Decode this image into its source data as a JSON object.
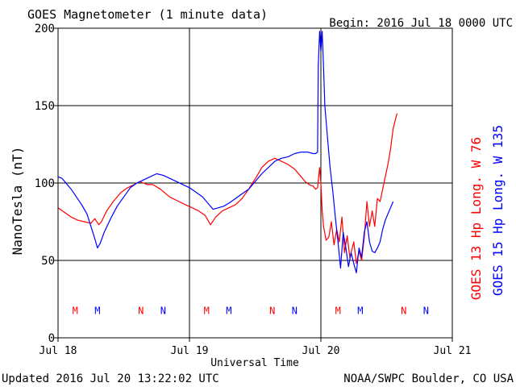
{
  "header": {
    "title": "GOES Magnetometer (1 minute data)",
    "begin": "Begin:  2016 Jul 18 0000 UTC"
  },
  "footer": {
    "updated": "Updated 2016 Jul 20 13:22:02 UTC",
    "source": "NOAA/SWPC Boulder, CO USA"
  },
  "colors": {
    "goes13": "#ff0000",
    "goes15": "#0000ff",
    "axis": "#000000",
    "background": "#ffffff"
  },
  "chart_data": {
    "type": "line",
    "title": "GOES Magnetometer (1 minute data)",
    "xlabel": "Universal Time",
    "ylabel": "NanoTesla (nT)",
    "x_unit": "days since 2016 Jul 18 0000 UTC",
    "xlim": [
      0,
      3
    ],
    "ylim": [
      0,
      200
    ],
    "x_ticks": [
      {
        "x": 0,
        "label": "Jul 18"
      },
      {
        "x": 1,
        "label": "Jul 19"
      },
      {
        "x": 2,
        "label": "Jul 20"
      },
      {
        "x": 3,
        "label": "Jul 21"
      }
    ],
    "y_ticks": [
      0,
      50,
      100,
      150,
      200
    ],
    "grid": "major lines at y=50,100,150 and at each day boundary",
    "series": [
      {
        "name": "GOES 13 Hp  Long. W 76",
        "color": "#ff0000",
        "points": [
          [
            0.0,
            84
          ],
          [
            0.05,
            81
          ],
          [
            0.1,
            78
          ],
          [
            0.15,
            76
          ],
          [
            0.2,
            75
          ],
          [
            0.25,
            74
          ],
          [
            0.28,
            77
          ],
          [
            0.31,
            73
          ],
          [
            0.33,
            75
          ],
          [
            0.37,
            82
          ],
          [
            0.42,
            88
          ],
          [
            0.48,
            94
          ],
          [
            0.53,
            97
          ],
          [
            0.58,
            99
          ],
          [
            0.62,
            101
          ],
          [
            0.65,
            100
          ],
          [
            0.68,
            99
          ],
          [
            0.72,
            99
          ],
          [
            0.78,
            96
          ],
          [
            0.85,
            91
          ],
          [
            0.92,
            88
          ],
          [
            0.97,
            86
          ],
          [
            1.02,
            84
          ],
          [
            1.07,
            82
          ],
          [
            1.12,
            79
          ],
          [
            1.16,
            73
          ],
          [
            1.2,
            78
          ],
          [
            1.25,
            82
          ],
          [
            1.3,
            84
          ],
          [
            1.35,
            86
          ],
          [
            1.4,
            90
          ],
          [
            1.45,
            96
          ],
          [
            1.48,
            100
          ],
          [
            1.51,
            104
          ],
          [
            1.55,
            110
          ],
          [
            1.6,
            114
          ],
          [
            1.65,
            116
          ],
          [
            1.7,
            114
          ],
          [
            1.75,
            112
          ],
          [
            1.8,
            109
          ],
          [
            1.85,
            104
          ],
          [
            1.88,
            101
          ],
          [
            1.91,
            99
          ],
          [
            1.94,
            98
          ],
          [
            1.96,
            96
          ],
          [
            1.975,
            97
          ],
          [
            1.99,
            110
          ],
          [
            2.0,
            100
          ],
          [
            2.01,
            82
          ],
          [
            2.02,
            72
          ],
          [
            2.04,
            63
          ],
          [
            2.06,
            65
          ],
          [
            2.08,
            75
          ],
          [
            2.1,
            60
          ],
          [
            2.12,
            70
          ],
          [
            2.14,
            62
          ],
          [
            2.16,
            78
          ],
          [
            2.18,
            55
          ],
          [
            2.2,
            66
          ],
          [
            2.22,
            52
          ],
          [
            2.25,
            62
          ],
          [
            2.27,
            48
          ],
          [
            2.29,
            56
          ],
          [
            2.31,
            50
          ],
          [
            2.33,
            65
          ],
          [
            2.35,
            88
          ],
          [
            2.37,
            72
          ],
          [
            2.39,
            82
          ],
          [
            2.41,
            72
          ],
          [
            2.43,
            90
          ],
          [
            2.45,
            88
          ],
          [
            2.47,
            96
          ],
          [
            2.49,
            104
          ],
          [
            2.51,
            112
          ],
          [
            2.53,
            122
          ],
          [
            2.55,
            135
          ],
          [
            2.57,
            142
          ],
          [
            2.58,
            145
          ]
        ]
      },
      {
        "name": "GOES 15 Hp  Long. W 135",
        "color": "#0000ff",
        "points": [
          [
            0.0,
            104
          ],
          [
            0.03,
            103
          ],
          [
            0.06,
            100
          ],
          [
            0.1,
            96
          ],
          [
            0.14,
            91
          ],
          [
            0.18,
            86
          ],
          [
            0.22,
            80
          ],
          [
            0.25,
            72
          ],
          [
            0.28,
            64
          ],
          [
            0.3,
            58
          ],
          [
            0.32,
            61
          ],
          [
            0.35,
            68
          ],
          [
            0.4,
            77
          ],
          [
            0.45,
            85
          ],
          [
            0.5,
            91
          ],
          [
            0.55,
            97
          ],
          [
            0.6,
            100
          ],
          [
            0.65,
            102
          ],
          [
            0.7,
            104
          ],
          [
            0.75,
            106
          ],
          [
            0.8,
            105
          ],
          [
            0.85,
            103
          ],
          [
            0.9,
            101
          ],
          [
            0.95,
            99
          ],
          [
            1.0,
            97
          ],
          [
            1.05,
            94
          ],
          [
            1.1,
            91
          ],
          [
            1.15,
            86
          ],
          [
            1.18,
            83
          ],
          [
            1.22,
            84
          ],
          [
            1.26,
            85
          ],
          [
            1.3,
            87
          ],
          [
            1.35,
            90
          ],
          [
            1.4,
            93
          ],
          [
            1.45,
            96
          ],
          [
            1.5,
            101
          ],
          [
            1.55,
            106
          ],
          [
            1.6,
            110
          ],
          [
            1.65,
            114
          ],
          [
            1.7,
            116
          ],
          [
            1.75,
            117
          ],
          [
            1.8,
            119
          ],
          [
            1.85,
            120
          ],
          [
            1.9,
            120
          ],
          [
            1.94,
            119
          ],
          [
            1.96,
            119
          ],
          [
            1.975,
            120
          ],
          [
            1.98,
            175
          ],
          [
            1.99,
            198
          ],
          [
            2.0,
            185
          ],
          [
            2.01,
            198
          ],
          [
            2.02,
            175
          ],
          [
            2.03,
            150
          ],
          [
            2.05,
            130
          ],
          [
            2.07,
            110
          ],
          [
            2.09,
            95
          ],
          [
            2.11,
            78
          ],
          [
            2.13,
            62
          ],
          [
            2.15,
            45
          ],
          [
            2.17,
            68
          ],
          [
            2.19,
            58
          ],
          [
            2.21,
            46
          ],
          [
            2.23,
            55
          ],
          [
            2.25,
            48
          ],
          [
            2.27,
            42
          ],
          [
            2.29,
            58
          ],
          [
            2.31,
            52
          ],
          [
            2.33,
            68
          ],
          [
            2.35,
            75
          ],
          [
            2.37,
            62
          ],
          [
            2.39,
            56
          ],
          [
            2.41,
            55
          ],
          [
            2.43,
            58
          ],
          [
            2.45,
            62
          ],
          [
            2.47,
            70
          ],
          [
            2.49,
            76
          ],
          [
            2.51,
            80
          ],
          [
            2.53,
            84
          ],
          [
            2.55,
            88
          ]
        ]
      }
    ],
    "markers": {
      "y_level": 18,
      "items": [
        {
          "label": "M",
          "x": 0.13,
          "color": "#ff0000"
        },
        {
          "label": "M",
          "x": 0.3,
          "color": "#0000ff"
        },
        {
          "label": "N",
          "x": 0.63,
          "color": "#ff0000"
        },
        {
          "label": "N",
          "x": 0.8,
          "color": "#0000ff"
        },
        {
          "label": "M",
          "x": 1.13,
          "color": "#ff0000"
        },
        {
          "label": "M",
          "x": 1.3,
          "color": "#0000ff"
        },
        {
          "label": "N",
          "x": 1.63,
          "color": "#ff0000"
        },
        {
          "label": "N",
          "x": 1.8,
          "color": "#0000ff"
        },
        {
          "label": "M",
          "x": 2.13,
          "color": "#ff0000"
        },
        {
          "label": "M",
          "x": 2.3,
          "color": "#0000ff"
        },
        {
          "label": "N",
          "x": 2.63,
          "color": "#ff0000"
        },
        {
          "label": "N",
          "x": 2.8,
          "color": "#0000ff"
        }
      ]
    }
  }
}
